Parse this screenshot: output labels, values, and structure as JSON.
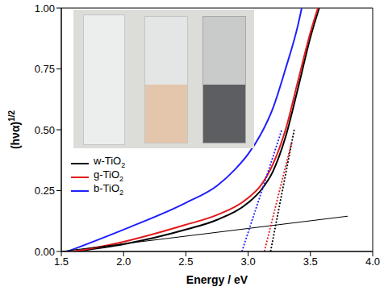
{
  "chart_data": {
    "type": "line",
    "x_label": "Energy / eV",
    "y_label": "(hνα)1/2",
    "xlim": [
      1.5,
      4.0
    ],
    "ylim": [
      0,
      1.0
    ],
    "xticks": [
      1.5,
      {
        "value": 2.0,
        "label": "2.0"
      },
      2.5,
      {
        "value": 3.0,
        "label": "3.0"
      },
      3.5,
      {
        "value": 4.0,
        "label": "4.0"
      }
    ],
    "yticks": [
      {
        "value": 0,
        "label": "0.00"
      },
      0.25,
      {
        "value": 0.5,
        "label": "0.50"
      },
      0.75,
      {
        "value": 1.0,
        "label": "1.00"
      }
    ],
    "legend": "lower left",
    "series": [
      {
        "name": "w-TiO2",
        "color": "#000000",
        "line_style": "solid",
        "x": [
          1.6,
          2.0,
          2.5,
          2.75,
          3.0,
          3.1,
          3.2,
          3.3,
          3.4,
          3.5,
          3.57
        ],
        "values": [
          0.0,
          0.03,
          0.09,
          0.13,
          0.2,
          0.25,
          0.33,
          0.47,
          0.67,
          0.88,
          1.0
        ]
      },
      {
        "name": "g-TiO2",
        "color": "#e31a1c",
        "line_style": "solid",
        "x": [
          1.6,
          2.0,
          2.5,
          2.75,
          3.0,
          3.1,
          3.2,
          3.3,
          3.4,
          3.5,
          3.56
        ],
        "values": [
          0.0,
          0.04,
          0.11,
          0.15,
          0.22,
          0.27,
          0.36,
          0.5,
          0.7,
          0.9,
          1.0
        ]
      },
      {
        "name": "b-TiO2",
        "color": "#1f1fff",
        "line_style": "solid",
        "x": [
          1.55,
          2.0,
          2.5,
          2.75,
          2.9,
          3.0,
          3.1,
          3.2,
          3.3,
          3.4,
          3.43
        ],
        "values": [
          0.0,
          0.09,
          0.2,
          0.27,
          0.34,
          0.4,
          0.48,
          0.59,
          0.75,
          0.93,
          1.0
        ]
      },
      {
        "color": "#000000",
        "line_style": "solid",
        "x": [
          1.5,
          3.8
        ],
        "values": [
          0.0,
          0.145
        ]
      },
      {
        "color": "#000000",
        "line_style": "dotted",
        "x": [
          3.18,
          3.37
        ],
        "values": [
          0.0,
          0.5
        ]
      },
      {
        "color": "#e31a1c",
        "line_style": "dotted",
        "x": [
          3.13,
          3.35
        ],
        "values": [
          0.0,
          0.45
        ]
      },
      {
        "color": "#1f1fff",
        "line_style": "dotted",
        "x": [
          2.95,
          3.27
        ],
        "values": [
          0.0,
          0.5
        ]
      }
    ]
  }
}
